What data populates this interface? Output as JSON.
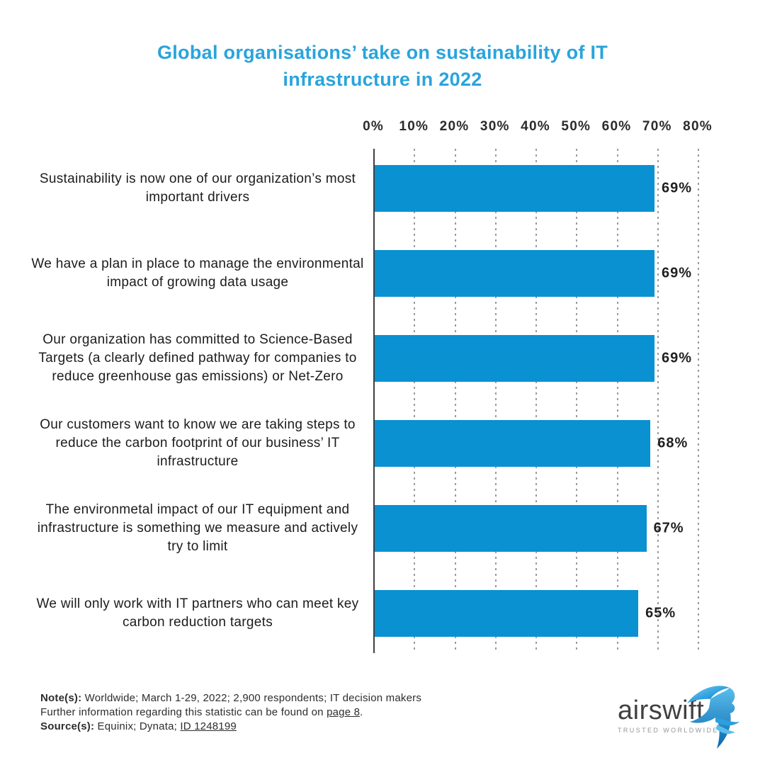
{
  "title": "Global organisations’ take on sustainability of IT infrastructure in 2022",
  "title_color": "#29A4DC",
  "chart_data": {
    "type": "bar",
    "orientation": "horizontal",
    "title": "Global organisations’ take on sustainability of IT infrastructure in 2022",
    "categories": [
      "Sustainability is now one of our organization’s most important drivers",
      "We have a plan in place to manage the environmental impact of growing data usage",
      "Our organization has committed to Science-Based Targets (a clearly defined pathway for companies to reduce greenhouse gas emissions) or Net-Zero",
      "Our customers want to know we are taking steps to reduce the carbon footprint of our business’ IT infrastructure",
      "The environmetal impact of our IT equipment and infrastructure is something we measure and actively try to limit",
      "We will only work with IT partners who can meet key carbon reduction targets"
    ],
    "values": [
      69,
      69,
      69,
      68,
      67,
      65
    ],
    "value_labels": [
      "69%",
      "69%",
      "69%",
      "68%",
      "67%",
      "65%"
    ],
    "xlabel": "",
    "ylabel": "",
    "xlim": [
      0,
      80
    ],
    "x_ticks": [
      "0%",
      "10%",
      "20%",
      "30%",
      "40%",
      "50%",
      "60%",
      "70%",
      "80%"
    ],
    "bar_color": "#0991D1",
    "grid": "dotted vertical gridlines, solid axis at 0%, ticks on top",
    "legend": "none"
  },
  "notes": {
    "note_label": "Note(s):",
    "note_text": " Worldwide; March 1-29, 2022; 2,900 respondents; IT decision makers",
    "further_prefix": "Further information regarding this statistic can be found on ",
    "further_link": "page 8",
    "further_suffix": ".",
    "source_label": "Source(s):",
    "source_text": " Equinix; Dynata; ",
    "source_link": "ID 1248199"
  },
  "logo": {
    "name": "airswift",
    "tagline": "TRUSTED WORLDWIDE",
    "bird_icon": "swift-bird-icon",
    "bird_colors": [
      "#7ECDF0",
      "#2D9FDE",
      "#0D6FB8"
    ]
  }
}
